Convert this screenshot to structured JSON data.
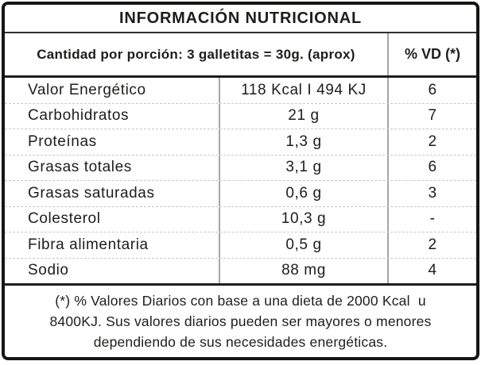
{
  "label": {
    "title": "INFORMACIÓN NUTRICIONAL",
    "serving_info": "Cantidad por porción: 3 galletitas = 30g. (aprox)",
    "daily_value_header": "% VD (*)",
    "rows": [
      {
        "name": "Valor Energético",
        "amount": "118 Kcal I 494 KJ",
        "daily_value": "6"
      },
      {
        "name": "Carbohidratos",
        "amount": "21 g",
        "daily_value": "7"
      },
      {
        "name": "Proteínas",
        "amount": "1,3 g",
        "daily_value": "2"
      },
      {
        "name": "Grasas totales",
        "amount": "3,1 g",
        "daily_value": "6"
      },
      {
        "name": "Grasas saturadas",
        "amount": "0,6 g",
        "daily_value": "3"
      },
      {
        "name": "Colesterol",
        "amount": "10,3 g",
        "daily_value": "-"
      },
      {
        "name": "Fibra alimentaria",
        "amount": "0,5 g",
        "daily_value": "2"
      },
      {
        "name": "Sodio",
        "amount": "88 mg",
        "daily_value": "4"
      }
    ],
    "footnote_lines": [
      "(*) % Valores Diarios con base a una dieta de 2000 Kcal  u",
      "8400KJ. Sus valores diarios pueden ser mayores o menores",
      "dependiendo de sus necesidades energéticas."
    ],
    "colors": {
      "text": "#1d1d1b",
      "border": "#151513",
      "column_divider": "#a6a6a6",
      "row_separator": "#c9c9c9",
      "background": "#ffffff"
    }
  }
}
